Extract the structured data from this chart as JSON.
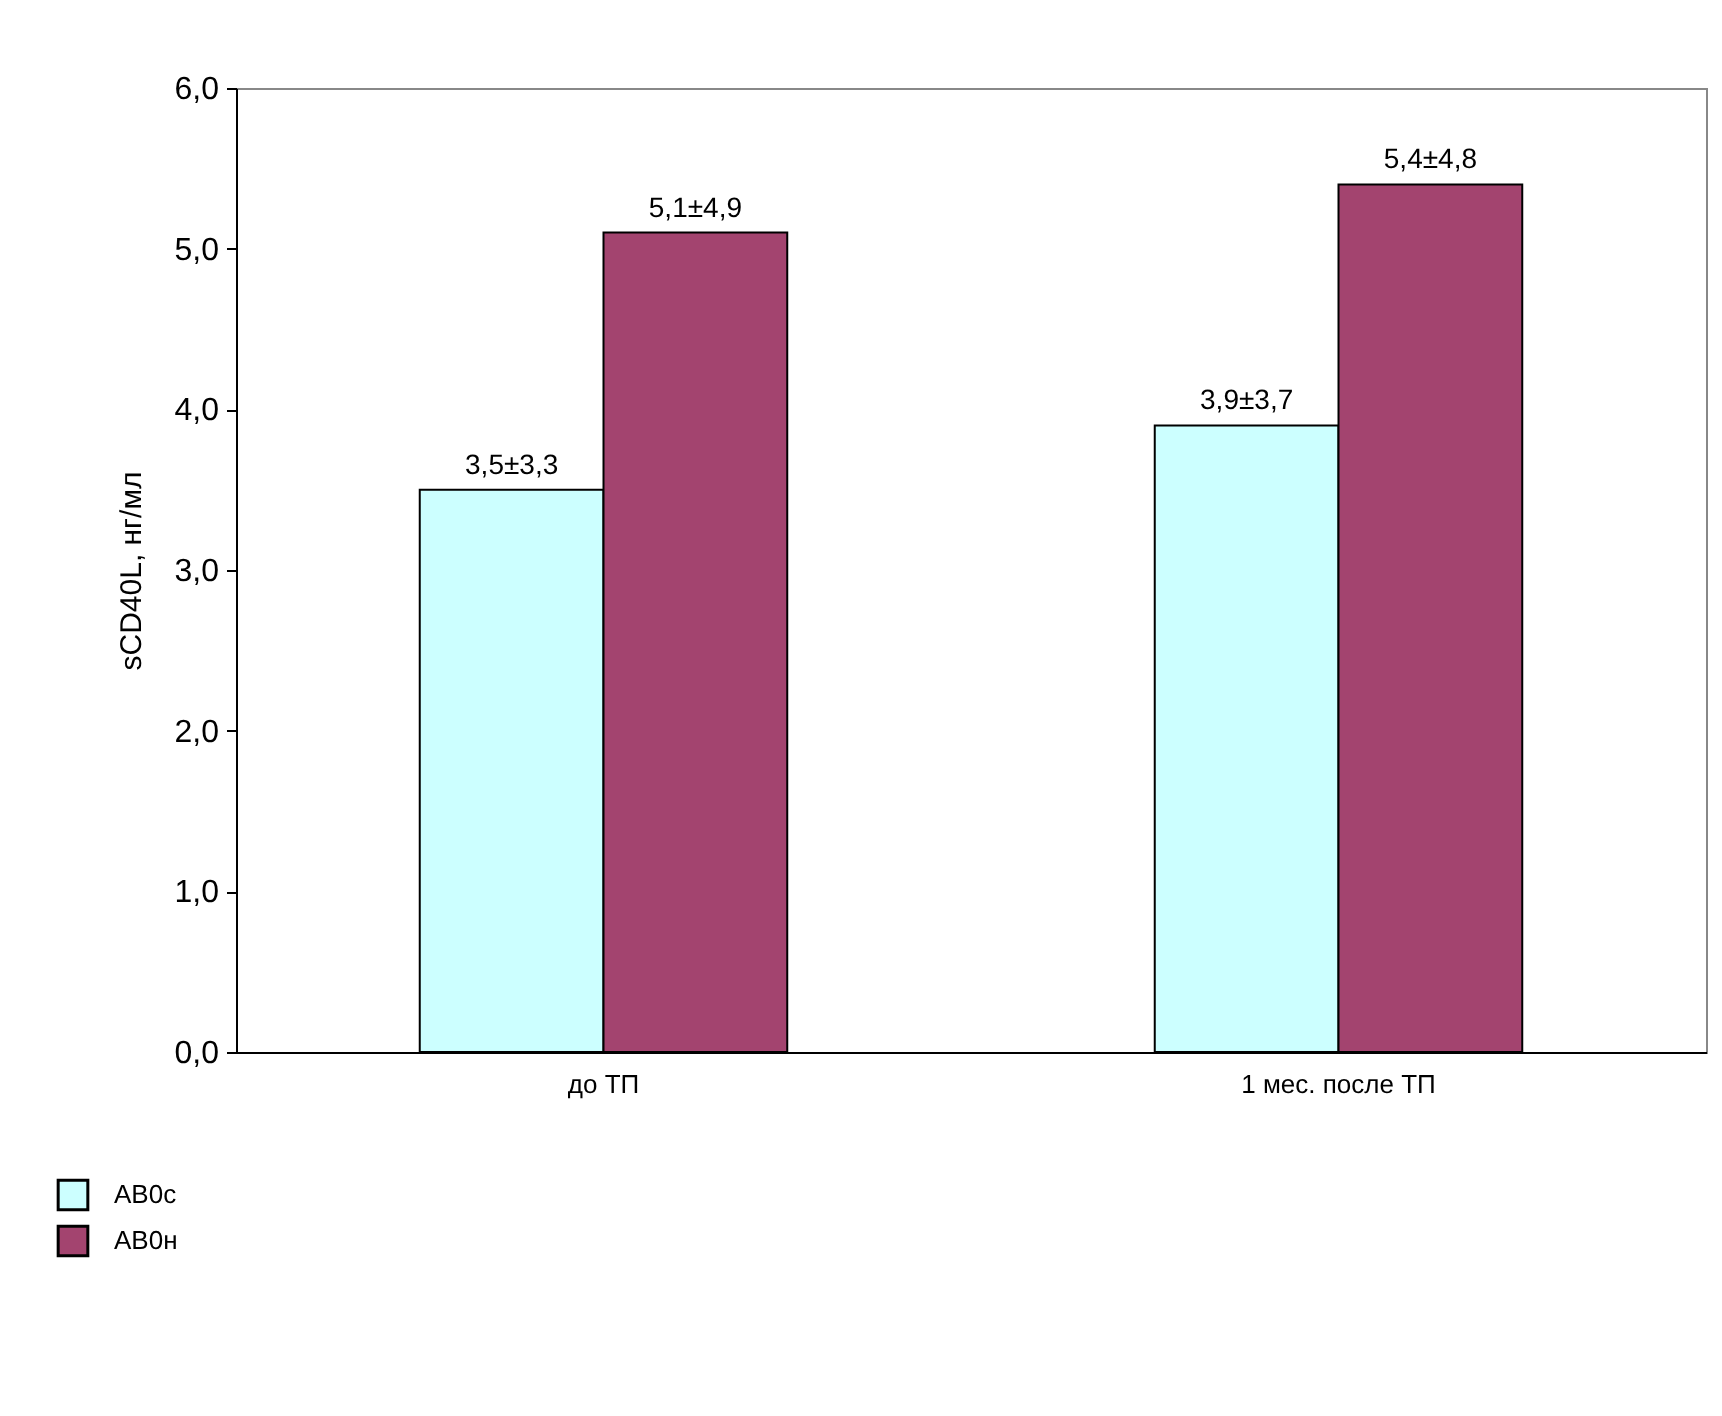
{
  "chart_data": {
    "type": "bar",
    "categories": [
      "до ТП",
      "1 мес. после ТП"
    ],
    "ylabel": "sCD40L, нг/мл",
    "ylim": [
      0,
      6
    ],
    "yticks": [
      {
        "value": 0,
        "label": "0,0"
      },
      {
        "value": 1,
        "label": "1,0"
      },
      {
        "value": 2,
        "label": "2,0"
      },
      {
        "value": 3,
        "label": "3,0"
      },
      {
        "value": 4,
        "label": "4,0"
      },
      {
        "value": 5,
        "label": "5,0"
      },
      {
        "value": 6,
        "label": "6,0"
      }
    ],
    "grid": false,
    "legend": "bottom left",
    "series": [
      {
        "name": "AB0c",
        "color": "#ccffff",
        "values": [
          3.5,
          3.9
        ],
        "value_labels": [
          "3,5±3,3",
          "3,9±3,7"
        ]
      },
      {
        "name": "AB0н",
        "color": "#a3446f",
        "values": [
          5.1,
          5.4
        ],
        "value_labels": [
          "5,1±4,9",
          "5,4±4,8"
        ]
      }
    ]
  }
}
